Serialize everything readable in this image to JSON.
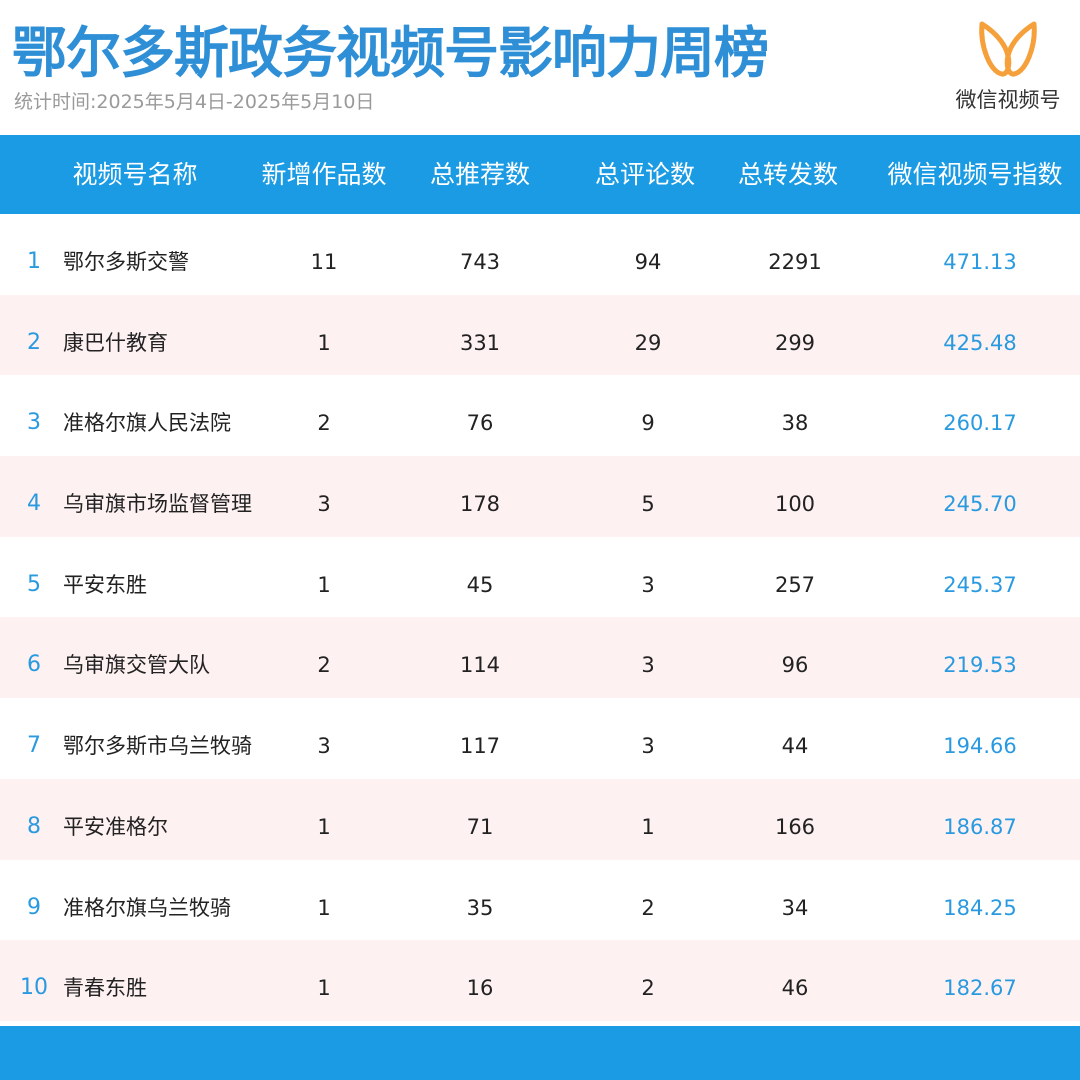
{
  "header": {
    "title": "鄂尔多斯政务视频号影响力周榜",
    "subtitle": "统计时间:2025年5月4日-2025年5月10日",
    "logo_icon": "wechat-channels-butterfly-icon",
    "logo_text": "微信视频号",
    "logo_color": "#f5a03a",
    "accent_color": "#1a9be3"
  },
  "table": {
    "columns": [
      "视频号名称",
      "新增作品数",
      "总推荐数",
      "总评论数",
      "总转发数",
      "微信视频号指数"
    ],
    "rows": [
      {
        "rank": "1",
        "name": "鄂尔多斯交警",
        "new_works": "11",
        "recommends": "743",
        "comments": "94",
        "shares": "2291",
        "index": "471.13"
      },
      {
        "rank": "2",
        "name": "康巴什教育",
        "new_works": "1",
        "recommends": "331",
        "comments": "29",
        "shares": "299",
        "index": "425.48"
      },
      {
        "rank": "3",
        "name": "准格尔旗人民法院",
        "new_works": "2",
        "recommends": "76",
        "comments": "9",
        "shares": "38",
        "index": "260.17"
      },
      {
        "rank": "4",
        "name": "乌审旗市场监督管理",
        "new_works": "3",
        "recommends": "178",
        "comments": "5",
        "shares": "100",
        "index": "245.70"
      },
      {
        "rank": "5",
        "name": "平安东胜",
        "new_works": "1",
        "recommends": "45",
        "comments": "3",
        "shares": "257",
        "index": "245.37"
      },
      {
        "rank": "6",
        "name": "乌审旗交管大队",
        "new_works": "2",
        "recommends": "114",
        "comments": "3",
        "shares": "96",
        "index": "219.53"
      },
      {
        "rank": "7",
        "name": "鄂尔多斯市乌兰牧骑",
        "new_works": "3",
        "recommends": "117",
        "comments": "3",
        "shares": "44",
        "index": "194.66"
      },
      {
        "rank": "8",
        "name": "平安准格尔",
        "new_works": "1",
        "recommends": "71",
        "comments": "1",
        "shares": "166",
        "index": "186.87"
      },
      {
        "rank": "9",
        "name": "准格尔旗乌兰牧骑",
        "new_works": "1",
        "recommends": "35",
        "comments": "2",
        "shares": "34",
        "index": "184.25"
      },
      {
        "rank": "10",
        "name": "青春东胜",
        "new_works": "1",
        "recommends": "16",
        "comments": "2",
        "shares": "46",
        "index": "182.67"
      }
    ]
  }
}
